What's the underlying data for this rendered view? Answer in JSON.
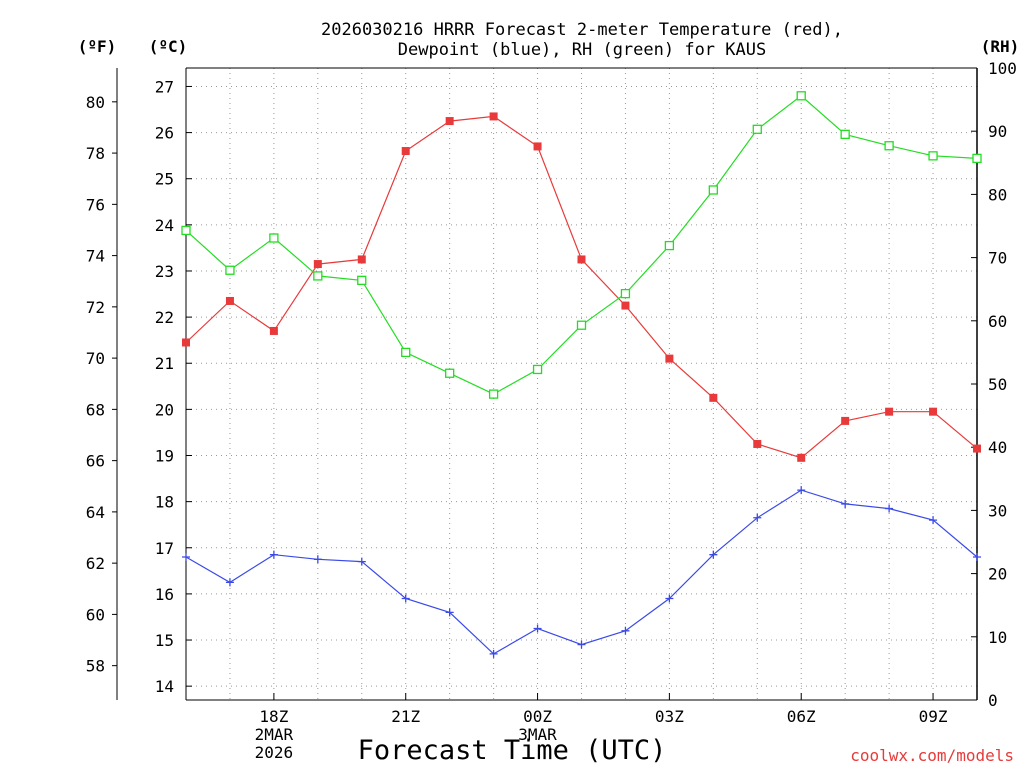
{
  "chart_data": {
    "type": "line",
    "title_line1": "2026030216 HRRR Forecast 2-meter Temperature (red),",
    "title_line2": "Dewpoint (blue), RH (green) for KAUS",
    "xlabel": "Forecast Time (UTC)",
    "watermark": "coolwx.com/models",
    "unit_f": "(ºF)",
    "unit_c": "(ºC)",
    "unit_rh": "(RH)",
    "x_hours": [
      0,
      1,
      2,
      3,
      4,
      5,
      6,
      7,
      8,
      9,
      10,
      11,
      12,
      13,
      14,
      15,
      16,
      17,
      18
    ],
    "x_ticks": [
      {
        "hour": 2,
        "lines": [
          "18Z",
          "2MAR",
          "2026"
        ]
      },
      {
        "hour": 5,
        "lines": [
          "21Z"
        ]
      },
      {
        "hour": 8,
        "lines": [
          "00Z",
          "3MAR"
        ]
      },
      {
        "hour": 11,
        "lines": [
          "03Z"
        ]
      },
      {
        "hour": 14,
        "lines": [
          "06Z"
        ]
      },
      {
        "hour": 17,
        "lines": [
          "09Z"
        ]
      }
    ],
    "y_celsius": {
      "range": [
        13.7,
        27.4
      ],
      "ticks": [
        "14",
        "15",
        "16",
        "17",
        "18",
        "19",
        "20",
        "21",
        "22",
        "23",
        "24",
        "25",
        "26",
        "27"
      ]
    },
    "y_fahrenheit": {
      "ticks": [
        "58",
        "60",
        "62",
        "64",
        "66",
        "68",
        "70",
        "72",
        "74",
        "76",
        "78",
        "80"
      ]
    },
    "y_rh": {
      "range": [
        0,
        100
      ],
      "ticks": [
        "0",
        "10",
        "20",
        "30",
        "40",
        "50",
        "60",
        "70",
        "80",
        "90",
        "100"
      ]
    },
    "series": [
      {
        "name": "Temperature",
        "color": "#e83a3a",
        "marker": "filled-square",
        "values": [
          21.45,
          22.35,
          21.7,
          23.15,
          23.25,
          25.6,
          26.25,
          26.35,
          25.7,
          23.25,
          22.25,
          21.1,
          20.25,
          19.25,
          18.95,
          19.75,
          19.95,
          19.95,
          19.15
        ]
      },
      {
        "name": "Dewpoint",
        "color": "#3a4ae8",
        "marker": "plus",
        "values": [
          16.8,
          16.25,
          16.85,
          16.75,
          16.7,
          15.9,
          15.6,
          14.7,
          15.25,
          14.9,
          15.2,
          15.9,
          16.85,
          17.65,
          18.25,
          17.95,
          17.85,
          17.6,
          16.8
        ]
      },
      {
        "name": "RH",
        "color": "#22dd22",
        "marker": "open-square",
        "axis": "right",
        "values": [
          74.3,
          68,
          73.1,
          67.1,
          66.4,
          55,
          51.7,
          48.4,
          52.3,
          59.3,
          64.3,
          71.9,
          80.7,
          90.3,
          95.6,
          89.5,
          87.7,
          86.1,
          85.7
        ]
      }
    ]
  }
}
